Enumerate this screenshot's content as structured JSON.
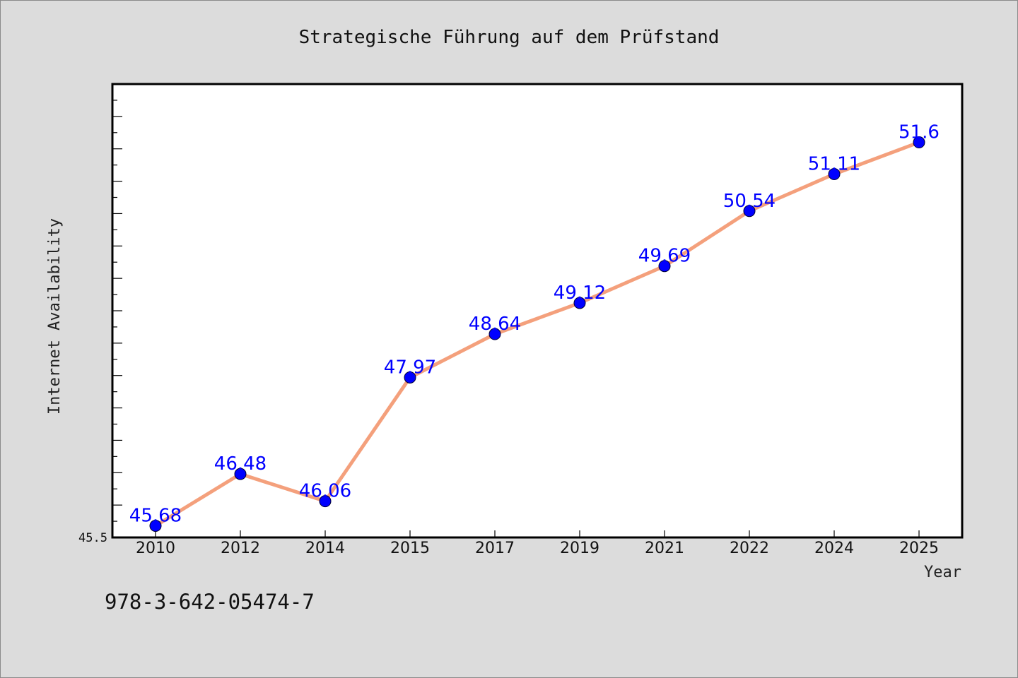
{
  "chart_data": {
    "type": "line",
    "title": "Strategische Führung auf dem Prüfstand",
    "xlabel": "Year",
    "ylabel": "Internet Availability",
    "categories": [
      "2010",
      "2012",
      "2014",
      "2015",
      "2017",
      "2019",
      "2021",
      "2022",
      "2024",
      "2025"
    ],
    "series": [
      {
        "values": [
          45.68,
          46.48,
          46.06,
          47.97,
          48.64,
          49.12,
          49.69,
          50.54,
          51.11,
          51.6
        ],
        "labels": [
          "45.68",
          "46.48",
          "46.06",
          "47.97",
          "48.64",
          "49.12",
          "49.69",
          "50.54",
          "51.11",
          "51.6"
        ],
        "line_color": "#f4a07c",
        "marker_color": "#0000ff"
      }
    ],
    "ylim": [
      45.5,
      52.5
    ],
    "yticks_labeled": [
      "45.5"
    ],
    "grid": false,
    "legend": "none",
    "plot_background": "#ffffff",
    "figure_background": "#dcdcdc",
    "label_color": "#0000ff"
  },
  "footer": {
    "isbn": "978-3-642-05474-7"
  }
}
